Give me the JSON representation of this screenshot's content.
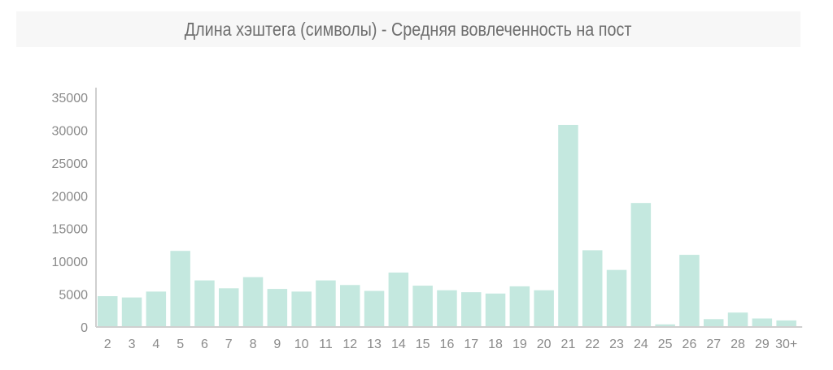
{
  "chart_data": {
    "type": "bar",
    "title": "Длина хэштега (символы) - Средняя вовлеченность на пост",
    "xlabel": "",
    "ylabel": "",
    "ylim": [
      0,
      35000
    ],
    "yticks": [
      0,
      5000,
      10000,
      15000,
      20000,
      25000,
      30000,
      35000
    ],
    "grid": false,
    "bar_color": "#c4e8df",
    "axis_color": "#cfcfcf",
    "categories": [
      "2",
      "3",
      "4",
      "5",
      "6",
      "7",
      "8",
      "9",
      "10",
      "11",
      "12",
      "13",
      "14",
      "15",
      "16",
      "17",
      "18",
      "19",
      "20",
      "21",
      "22",
      "23",
      "24",
      "25",
      "26",
      "27",
      "28",
      "29",
      "30+"
    ],
    "values": [
      4700,
      4500,
      5400,
      11600,
      7100,
      5900,
      7600,
      5800,
      5400,
      7100,
      6400,
      5500,
      8300,
      6300,
      5600,
      5300,
      5100,
      6200,
      5600,
      30800,
      11700,
      8700,
      18900,
      400,
      11000,
      1200,
      2200,
      1300,
      1000
    ]
  }
}
